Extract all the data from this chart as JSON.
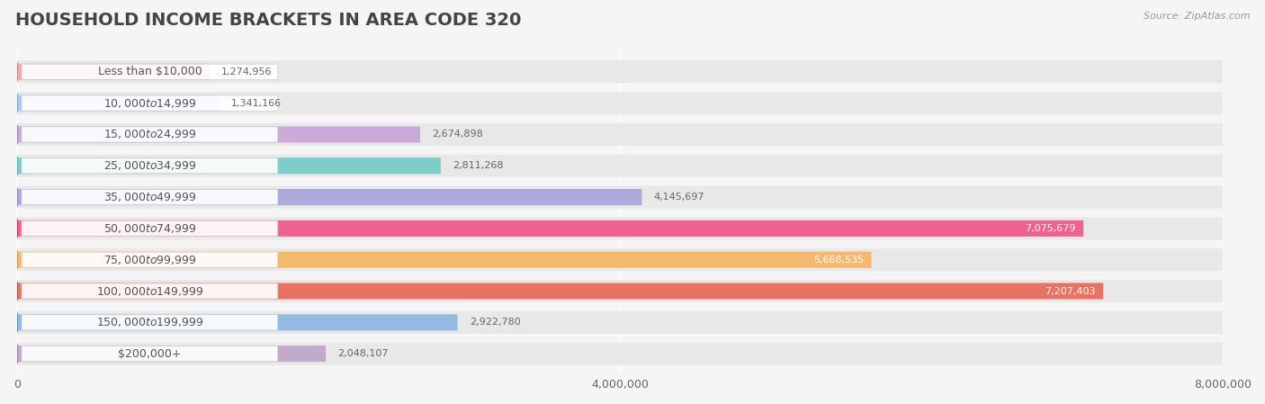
{
  "title": "HOUSEHOLD INCOME BRACKETS IN AREA CODE 320",
  "source": "Source: ZipAtlas.com",
  "categories": [
    "Less than $10,000",
    "$10,000 to $14,999",
    "$15,000 to $24,999",
    "$25,000 to $34,999",
    "$35,000 to $49,999",
    "$50,000 to $74,999",
    "$75,000 to $99,999",
    "$100,000 to $149,999",
    "$150,000 to $199,999",
    "$200,000+"
  ],
  "values": [
    1274956,
    1341166,
    2674898,
    2811268,
    4145697,
    7075679,
    5668535,
    7207403,
    2922780,
    2048107
  ],
  "bar_colors": [
    "#F2ABAA",
    "#AACBEC",
    "#C9AADB",
    "#7DCECB",
    "#ABABDB",
    "#F0618D",
    "#F5B96E",
    "#E97263",
    "#92BAE2",
    "#C1AACC"
  ],
  "dot_colors": [
    "#EE7878",
    "#6AAAD8",
    "#AB78CC",
    "#45BCBC",
    "#8888CC",
    "#E82070",
    "#F09030",
    "#DC4848",
    "#5098CC",
    "#9878C0"
  ],
  "value_labels": [
    "1,274,956",
    "1,341,166",
    "2,674,898",
    "2,811,268",
    "4,145,697",
    "7,075,679",
    "5,668,535",
    "7,207,403",
    "2,922,780",
    "2,048,107"
  ],
  "value_inside": [
    false,
    false,
    false,
    false,
    false,
    true,
    true,
    true,
    false,
    false
  ],
  "xlim": [
    0,
    8000000
  ],
  "xticks": [
    0,
    4000000,
    8000000
  ],
  "xtick_labels": [
    "0",
    "4,000,000",
    "8,000,000"
  ],
  "background_color": "#f5f5f5",
  "bar_background_color": "#e8e8e8",
  "title_fontsize": 14,
  "label_fontsize": 9,
  "value_fontsize": 8
}
